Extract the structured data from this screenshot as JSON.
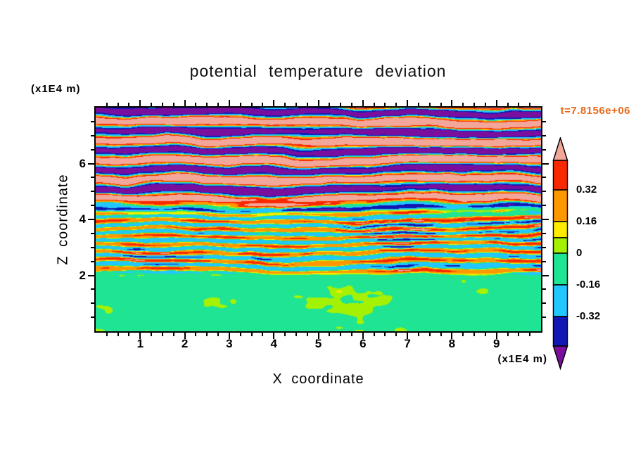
{
  "title": "potential temperature deviation",
  "time_label": "t=7.8156e+06",
  "time_label_color": "#e8691b",
  "x_axis": {
    "label": "X coordinate",
    "unit": "(x1E4 m)",
    "min": 0,
    "max": 10,
    "major_ticks": [
      1,
      2,
      3,
      4,
      5,
      6,
      7,
      8,
      9
    ],
    "minor_step": 0.25
  },
  "z_axis": {
    "label": "Z coordinate",
    "unit": "(x1E4 m)",
    "min": 0,
    "max": 8,
    "major_ticks": [
      2,
      4,
      6
    ],
    "minor_step": 0.5
  },
  "colorbar": {
    "top_arrow_color": "#f2a79a",
    "bottom_arrow_color": "#7a0f9e",
    "cells": [
      {
        "color": "#fa2800",
        "boundary_label": "0.32"
      },
      {
        "color": "#ff9800",
        "boundary_label": "0.16"
      },
      {
        "color": "#ffec00",
        "boundary_label": null
      },
      {
        "color": "#a4f104",
        "boundary_label": "0"
      },
      {
        "color": "#1ee493",
        "boundary_label": "-0.16"
      },
      {
        "color": "#22c7ff",
        "boundary_label": "-0.32"
      },
      {
        "color": "#1217b4",
        "boundary_label": null
      }
    ]
  },
  "chart_data": {
    "type": "heatmap",
    "subtype": "filled-contour",
    "title": "potential temperature deviation",
    "xlabel": "X coordinate (x1E4 m)",
    "ylabel": "Z coordinate (x1E4 m)",
    "x_range": [
      0,
      10
    ],
    "z_range": [
      0,
      8
    ],
    "x_ticks": [
      1,
      2,
      3,
      4,
      5,
      6,
      7,
      8,
      9
    ],
    "z_ticks": [
      2,
      4,
      6
    ],
    "time_annotation": "t=7.8156e+06",
    "labeled_levels": [
      0.32,
      0.16,
      0,
      -0.16,
      -0.32
    ],
    "palette": [
      {
        "min": 0.4,
        "color": "#f2a79a",
        "name": "salmon"
      },
      {
        "min": 0.32,
        "color": "#fa2800",
        "name": "red"
      },
      {
        "min": 0.16,
        "color": "#ff9800",
        "name": "orange"
      },
      {
        "min": 0.08,
        "color": "#ffec00",
        "name": "yellow"
      },
      {
        "min": 0.0,
        "color": "#a4f104",
        "name": "yellow-green"
      },
      {
        "min": -0.16,
        "color": "#1ee493",
        "name": "spring-green"
      },
      {
        "min": -0.32,
        "color": "#22c7ff",
        "name": "cyan"
      },
      {
        "min": -0.4,
        "color": "#1217b4",
        "name": "dark-blue"
      },
      {
        "min": -99,
        "color": "#7a0f9e",
        "name": "purple"
      }
    ],
    "regions": [
      {
        "z_range": [
          0,
          2
        ],
        "description": "near-zero deviation: spring-green background with scattered yellow-green patches"
      },
      {
        "z_range": [
          2,
          4.5
        ],
        "description": "fine braided turbulent horizontal streaks cycling through yellow-green, yellow, orange, red, cyan and dark-blue laminae"
      },
      {
        "z_range": [
          4.5,
          8
        ],
        "description": "strongly stratified wavy layers alternating salmon (>0.4) and purple (<-0.4) with thin red/orange/yellow and cyan/blue fringes"
      }
    ]
  }
}
